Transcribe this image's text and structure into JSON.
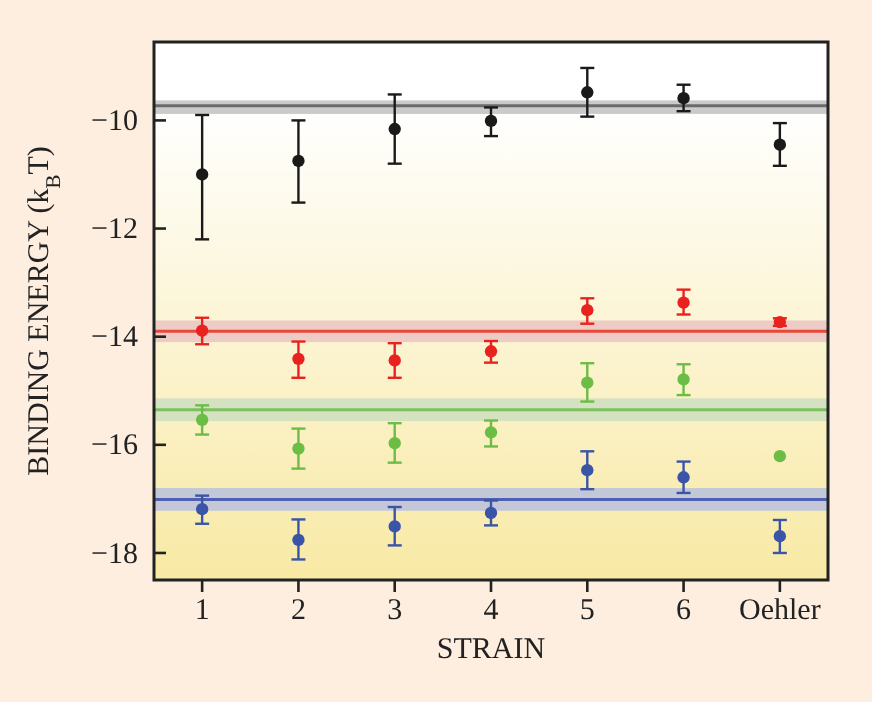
{
  "chart_data": {
    "type": "scatter",
    "xlabel": "STRAIN",
    "ylabel": "BINDING ENERGY (k$_{B}$T)",
    "categories": [
      "1",
      "2",
      "3",
      "4",
      "5",
      "6",
      "Oehler"
    ],
    "ylim": [
      -18.5,
      -8.55
    ],
    "yticks": [
      {
        "value": -10,
        "label": "−10"
      },
      {
        "value": -12,
        "label": "−12"
      },
      {
        "value": -14,
        "label": "−14"
      },
      {
        "value": -16,
        "label": "−16"
      },
      {
        "value": -18,
        "label": "−18"
      }
    ],
    "grid": false,
    "marker": "circle",
    "series": [
      {
        "color": "#1a1a1a",
        "values": [
          -11.0,
          -10.75,
          -10.16,
          -10.01,
          -9.48,
          -9.59,
          -10.45
        ],
        "errors": [
          [
            -12.2,
            -9.9
          ],
          [
            -11.52,
            -10.0
          ],
          [
            -10.8,
            -9.52
          ],
          [
            -10.29,
            -9.76
          ],
          [
            -9.93,
            -9.03
          ],
          [
            -9.83,
            -9.34
          ],
          [
            -10.84,
            -10.05
          ]
        ]
      },
      {
        "color": "#e8231f",
        "values": [
          -13.89,
          -14.41,
          -14.44,
          -14.27,
          -13.51,
          -13.37,
          -13.73
        ],
        "errors": [
          [
            -14.14,
            -13.65
          ],
          [
            -14.76,
            -14.09
          ],
          [
            -14.76,
            -14.12
          ],
          [
            -14.48,
            -14.08
          ],
          [
            -13.76,
            -13.29
          ],
          [
            -13.59,
            -13.13
          ],
          [
            -13.8,
            -13.66
          ]
        ]
      },
      {
        "color": "#6cbd45",
        "values": [
          -15.54,
          -16.07,
          -15.97,
          -15.77,
          -14.85,
          -14.79,
          -16.21
        ],
        "errors": [
          [
            -15.81,
            -15.27
          ],
          [
            -16.44,
            -15.7
          ],
          [
            -16.33,
            -15.6
          ],
          [
            -16.03,
            -15.55
          ],
          [
            -15.2,
            -14.49
          ],
          [
            -15.08,
            -14.51
          ],
          null
        ]
      },
      {
        "color": "#3a55a8",
        "values": [
          -17.19,
          -17.76,
          -17.51,
          -17.26,
          -16.47,
          -16.6,
          -17.69
        ],
        "errors": [
          [
            -17.46,
            -16.94
          ],
          [
            -18.12,
            -17.38
          ],
          [
            -17.86,
            -17.15
          ],
          [
            -17.49,
            -17.03
          ],
          [
            -16.82,
            -16.12
          ],
          [
            -16.89,
            -16.31
          ],
          [
            -18.0,
            -17.39
          ]
        ]
      }
    ],
    "bands": [
      {
        "axis": "y",
        "from": -9.88,
        "to": -9.63,
        "color": "#c4c4c4"
      },
      {
        "axis": "y",
        "from": -14.1,
        "to": -13.7,
        "color": "#ecc8c4"
      },
      {
        "axis": "y",
        "from": -15.56,
        "to": -15.14,
        "color": "#cfe0c0"
      },
      {
        "axis": "y",
        "from": -17.22,
        "to": -16.8,
        "color": "#bcc3dc"
      }
    ],
    "ref_lines": [
      {
        "axis": "y",
        "value": -9.73,
        "color": "#6a6a6a"
      },
      {
        "axis": "y",
        "value": -13.9,
        "color": "#e8473a"
      },
      {
        "axis": "y",
        "value": -15.35,
        "color": "#7cc060"
      },
      {
        "axis": "y",
        "value": -17.01,
        "color": "#5060b0"
      }
    ]
  }
}
